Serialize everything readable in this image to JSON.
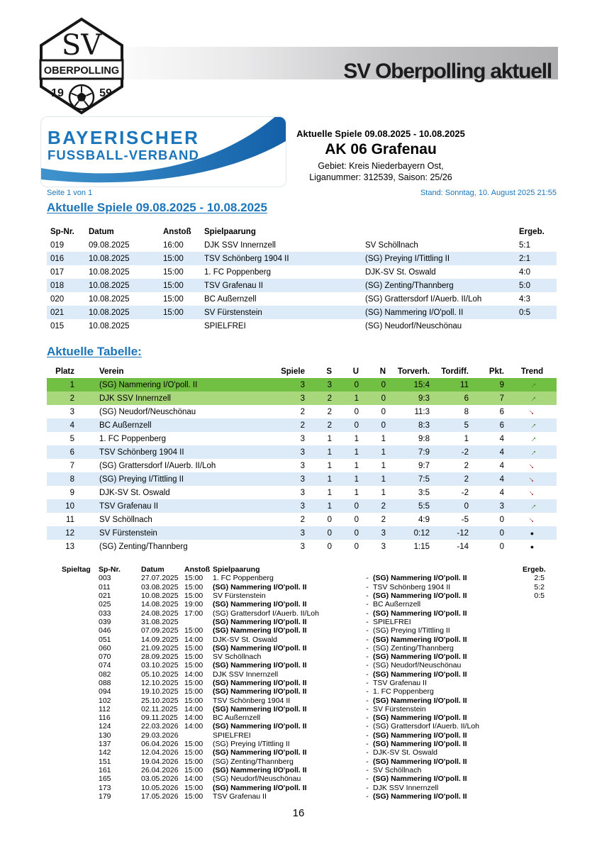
{
  "badge": {
    "club_initials": "SV",
    "club_name": "OBERPOLLING",
    "year_left": "19",
    "year_right": "59"
  },
  "banner": {
    "title": "SV Oberpolling aktuell"
  },
  "bfv_logo": {
    "line1": "BAYERISCHER",
    "line2": "FUSSBALL-VERBAND"
  },
  "competition": {
    "period": "Aktuelle Spiele 09.08.2025 - 10.08.2025",
    "league": "AK 06 Grafenau",
    "region": "Gebiet: Kreis Niederbayern Ost,",
    "league_number": "Liganummer: 312539, Saison: 25/26"
  },
  "meta": {
    "page_info": "Seite 1 von 1",
    "stand": "Stand: Sonntag, 10. August 2025 21:55"
  },
  "matches": {
    "heading": "Aktuelle Spiele 09.08.2025 - 10.08.2025",
    "columns": [
      "Sp-Nr.",
      "Datum",
      "Anstoß",
      "Spielpaarung",
      "Ergeb."
    ],
    "rows": [
      {
        "nr": "019",
        "datum": "09.08.2025",
        "anstoss": "16:00",
        "home": "DJK SSV Innernzell",
        "away": "SV Schöllnach",
        "ergebnis": "5:1"
      },
      {
        "nr": "016",
        "datum": "10.08.2025",
        "anstoss": "15:00",
        "home": "TSV Schönberg 1904 II",
        "away": "(SG) Preying I/Tittling II",
        "ergebnis": "2:1"
      },
      {
        "nr": "017",
        "datum": "10.08.2025",
        "anstoss": "15:00",
        "home": "1. FC Poppenberg",
        "away": "DJK-SV St. Oswald",
        "ergebnis": "4:0"
      },
      {
        "nr": "018",
        "datum": "10.08.2025",
        "anstoss": "15:00",
        "home": "TSV Grafenau II",
        "away": "(SG) Zenting/Thannberg",
        "ergebnis": "5:0"
      },
      {
        "nr": "020",
        "datum": "10.08.2025",
        "anstoss": "15:00",
        "home": "BC Außernzell",
        "away": "(SG) Grattersdorf I/Auerb. II/Loh",
        "ergebnis": "4:3"
      },
      {
        "nr": "021",
        "datum": "10.08.2025",
        "anstoss": "15:00",
        "home": "SV Fürstenstein",
        "away": "(SG) Nammering I/O'poll. II",
        "ergebnis": "0:5"
      },
      {
        "nr": "015",
        "datum": "10.08.2025",
        "anstoss": "",
        "home": "SPIELFREI",
        "away": "(SG) Neudorf/Neuschönau",
        "ergebnis": ""
      }
    ]
  },
  "standings": {
    "heading": "Aktuelle Tabelle:",
    "columns": [
      "Platz",
      "Verein",
      "Spiele",
      "S",
      "U",
      "N",
      "Torverh.",
      "Tordiff.",
      "Pkt.",
      "Trend"
    ],
    "rows": [
      {
        "platz": "1",
        "verein": "(SG) Nammering I/O'poll. II",
        "spiele": "3",
        "s": "3",
        "u": "0",
        "n": "0",
        "torverh": "15:4",
        "tordiff": "11",
        "pkt": "9",
        "trend": "up"
      },
      {
        "platz": "2",
        "verein": "DJK SSV Innernzell",
        "spiele": "3",
        "s": "2",
        "u": "1",
        "n": "0",
        "torverh": "9:3",
        "tordiff": "6",
        "pkt": "7",
        "trend": "up"
      },
      {
        "platz": "3",
        "verein": "(SG) Neudorf/Neuschönau",
        "spiele": "2",
        "s": "2",
        "u": "0",
        "n": "0",
        "torverh": "11:3",
        "tordiff": "8",
        "pkt": "6",
        "trend": "down"
      },
      {
        "platz": "4",
        "verein": "BC Außernzell",
        "spiele": "2",
        "s": "2",
        "u": "0",
        "n": "0",
        "torverh": "8:3",
        "tordiff": "5",
        "pkt": "6",
        "trend": "up"
      },
      {
        "platz": "5",
        "verein": "1. FC Poppenberg",
        "spiele": "3",
        "s": "1",
        "u": "1",
        "n": "1",
        "torverh": "9:8",
        "tordiff": "1",
        "pkt": "4",
        "trend": "up"
      },
      {
        "platz": "6",
        "verein": "TSV Schönberg 1904 II",
        "spiele": "3",
        "s": "1",
        "u": "1",
        "n": "1",
        "torverh": "7:9",
        "tordiff": "-2",
        "pkt": "4",
        "trend": "up"
      },
      {
        "platz": "7",
        "verein": "(SG) Grattersdorf I/Auerb. II/Loh",
        "spiele": "3",
        "s": "1",
        "u": "1",
        "n": "1",
        "torverh": "9:7",
        "tordiff": "2",
        "pkt": "4",
        "trend": "down"
      },
      {
        "platz": "8",
        "verein": "(SG) Preying I/Tittling II",
        "spiele": "3",
        "s": "1",
        "u": "1",
        "n": "1",
        "torverh": "7:5",
        "tordiff": "2",
        "pkt": "4",
        "trend": "down"
      },
      {
        "platz": "9",
        "verein": "DJK-SV St. Oswald",
        "spiele": "3",
        "s": "1",
        "u": "1",
        "n": "1",
        "torverh": "3:5",
        "tordiff": "-2",
        "pkt": "4",
        "trend": "down"
      },
      {
        "platz": "10",
        "verein": "TSV Grafenau II",
        "spiele": "3",
        "s": "1",
        "u": "0",
        "n": "2",
        "torverh": "5:5",
        "tordiff": "0",
        "pkt": "3",
        "trend": "up"
      },
      {
        "platz": "11",
        "verein": "SV Schöllnach",
        "spiele": "2",
        "s": "0",
        "u": "0",
        "n": "2",
        "torverh": "4:9",
        "tordiff": "-5",
        "pkt": "0",
        "trend": "down"
      },
      {
        "platz": "12",
        "verein": "SV Fürstenstein",
        "spiele": "3",
        "s": "0",
        "u": "0",
        "n": "3",
        "torverh": "0:12",
        "tordiff": "-12",
        "pkt": "0",
        "trend": "flat"
      },
      {
        "platz": "13",
        "verein": "(SG) Zenting/Thannberg",
        "spiele": "3",
        "s": "0",
        "u": "0",
        "n": "3",
        "torverh": "1:15",
        "tordiff": "-14",
        "pkt": "0",
        "trend": "flat"
      }
    ]
  },
  "schedule": {
    "columns": [
      "Spieltag",
      "Sp-Nr.",
      "Datum",
      "Anstoß",
      "Spielpaarung",
      "Ergeb."
    ],
    "rows": [
      {
        "nr": "003",
        "datum": "27.07.2025",
        "anstoss": "15:00",
        "home": "1. FC Poppenberg",
        "home_bold": false,
        "away": "(SG) Nammering I/O'poll. II",
        "away_bold": true,
        "ergebnis": "2:5"
      },
      {
        "nr": "011",
        "datum": "03.08.2025",
        "anstoss": "15:00",
        "home": "(SG) Nammering I/O'poll. II",
        "home_bold": true,
        "away": "TSV Schönberg 1904 II",
        "away_bold": false,
        "ergebnis": "5:2"
      },
      {
        "nr": "021",
        "datum": "10.08.2025",
        "anstoss": "15:00",
        "home": "SV Fürstenstein",
        "home_bold": false,
        "away": "(SG) Nammering I/O'poll. II",
        "away_bold": true,
        "ergebnis": "0:5"
      },
      {
        "nr": "025",
        "datum": "14.08.2025",
        "anstoss": "19:00",
        "home": "(SG) Nammering I/O'poll. II",
        "home_bold": true,
        "away": "BC Außernzell",
        "away_bold": false,
        "ergebnis": ""
      },
      {
        "nr": "033",
        "datum": "24.08.2025",
        "anstoss": "17:00",
        "home": "(SG) Grattersdorf I/Auerb. II/Loh",
        "home_bold": false,
        "away": "(SG) Nammering I/O'poll. II",
        "away_bold": true,
        "ergebnis": ""
      },
      {
        "nr": "039",
        "datum": "31.08.2025",
        "anstoss": "",
        "home": "(SG) Nammering I/O'poll. II",
        "home_bold": true,
        "away": "SPIELFREI",
        "away_bold": false,
        "ergebnis": ""
      },
      {
        "nr": "046",
        "datum": "07.09.2025",
        "anstoss": "15:00",
        "home": "(SG) Nammering I/O'poll. II",
        "home_bold": true,
        "away": "(SG) Preying I/Tittling II",
        "away_bold": false,
        "ergebnis": ""
      },
      {
        "nr": "051",
        "datum": "14.09.2025",
        "anstoss": "14:00",
        "home": "DJK-SV St. Oswald",
        "home_bold": false,
        "away": "(SG) Nammering I/O'poll. II",
        "away_bold": true,
        "ergebnis": ""
      },
      {
        "nr": "060",
        "datum": "21.09.2025",
        "anstoss": "15:00",
        "home": "(SG) Nammering I/O'poll. II",
        "home_bold": true,
        "away": "(SG) Zenting/Thannberg",
        "away_bold": false,
        "ergebnis": ""
      },
      {
        "nr": "070",
        "datum": "28.09.2025",
        "anstoss": "15:00",
        "home": "SV Schöllnach",
        "home_bold": false,
        "away": "(SG) Nammering I/O'poll. II",
        "away_bold": true,
        "ergebnis": ""
      },
      {
        "nr": "074",
        "datum": "03.10.2025",
        "anstoss": "15:00",
        "home": "(SG) Nammering I/O'poll. II",
        "home_bold": true,
        "away": "(SG) Neudorf/Neuschönau",
        "away_bold": false,
        "ergebnis": ""
      },
      {
        "nr": "082",
        "datum": "05.10.2025",
        "anstoss": "14:00",
        "home": "DJK SSV Innernzell",
        "home_bold": false,
        "away": "(SG) Nammering I/O'poll. II",
        "away_bold": true,
        "ergebnis": ""
      },
      {
        "nr": "088",
        "datum": "12.10.2025",
        "anstoss": "15:00",
        "home": "(SG) Nammering I/O'poll. II",
        "home_bold": true,
        "away": "TSV Grafenau II",
        "away_bold": false,
        "ergebnis": ""
      },
      {
        "nr": "094",
        "datum": "19.10.2025",
        "anstoss": "15:00",
        "home": "(SG) Nammering I/O'poll. II",
        "home_bold": true,
        "away": "1. FC Poppenberg",
        "away_bold": false,
        "ergebnis": ""
      },
      {
        "nr": "102",
        "datum": "25.10.2025",
        "anstoss": "15:00",
        "home": "TSV Schönberg 1904 II",
        "home_bold": false,
        "away": "(SG) Nammering I/O'poll. II",
        "away_bold": true,
        "ergebnis": ""
      },
      {
        "nr": "112",
        "datum": "02.11.2025",
        "anstoss": "14:00",
        "home": "(SG) Nammering I/O'poll. II",
        "home_bold": true,
        "away": "SV Fürstenstein",
        "away_bold": false,
        "ergebnis": ""
      },
      {
        "nr": "116",
        "datum": "09.11.2025",
        "anstoss": "14:00",
        "home": "BC Außernzell",
        "home_bold": false,
        "away": "(SG) Nammering I/O'poll. II",
        "away_bold": true,
        "ergebnis": ""
      },
      {
        "nr": "124",
        "datum": "22.03.2026",
        "anstoss": "14:00",
        "home": "(SG) Nammering I/O'poll. II",
        "home_bold": true,
        "away": "(SG) Grattersdorf I/Auerb. II/Loh",
        "away_bold": false,
        "ergebnis": ""
      },
      {
        "nr": "130",
        "datum": "29.03.2026",
        "anstoss": "",
        "home": "SPIELFREI",
        "home_bold": false,
        "away": "(SG) Nammering I/O'poll. II",
        "away_bold": true,
        "ergebnis": ""
      },
      {
        "nr": "137",
        "datum": "06.04.2026",
        "anstoss": "15:00",
        "home": "(SG) Preying I/Tittling II",
        "home_bold": false,
        "away": "(SG) Nammering I/O'poll. II",
        "away_bold": true,
        "ergebnis": ""
      },
      {
        "nr": "142",
        "datum": "12.04.2026",
        "anstoss": "15:00",
        "home": "(SG) Nammering I/O'poll. II",
        "home_bold": true,
        "away": "DJK-SV St. Oswald",
        "away_bold": false,
        "ergebnis": ""
      },
      {
        "nr": "151",
        "datum": "19.04.2026",
        "anstoss": "15:00",
        "home": "(SG) Zenting/Thannberg",
        "home_bold": false,
        "away": "(SG) Nammering I/O'poll. II",
        "away_bold": true,
        "ergebnis": ""
      },
      {
        "nr": "161",
        "datum": "26.04.2026",
        "anstoss": "15:00",
        "home": "(SG) Nammering I/O'poll. II",
        "home_bold": true,
        "away": "SV Schöllnach",
        "away_bold": false,
        "ergebnis": ""
      },
      {
        "nr": "165",
        "datum": "03.05.2026",
        "anstoss": "14:00",
        "home": "(SG) Neudorf/Neuschönau",
        "home_bold": false,
        "away": "(SG) Nammering I/O'poll. II",
        "away_bold": true,
        "ergebnis": ""
      },
      {
        "nr": "173",
        "datum": "10.05.2026",
        "anstoss": "15:00",
        "home": "(SG) Nammering I/O'poll. II",
        "home_bold": true,
        "away": "DJK SSV Innernzell",
        "away_bold": false,
        "ergebnis": ""
      },
      {
        "nr": "179",
        "datum": "17.05.2026",
        "anstoss": "15:00",
        "home": "TSV Grafenau II",
        "home_bold": false,
        "away": "(SG) Nammering I/O'poll. II",
        "away_bold": true,
        "ergebnis": ""
      }
    ]
  },
  "footer": {
    "page_number": "16"
  },
  "icons": {
    "trend_up": "→",
    "trend_down": "→",
    "trend_flat": "●"
  },
  "colors": {
    "accent_blue": "#1b75bb",
    "row_alt_blue": "#dcebf7",
    "rank1_green": "#72c043",
    "rank2_green": "#a9d77c",
    "trend_green": "#2e7d1e",
    "trend_red": "#9b1b1b",
    "band_gray": "#aeaeb0"
  }
}
